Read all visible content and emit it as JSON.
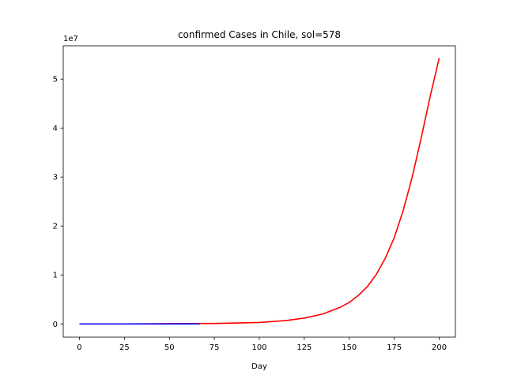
{
  "chart_data": {
    "type": "line",
    "title": "confirmed Cases in Chile, sol=578",
    "xlabel": "Day",
    "ylabel": "",
    "y_offset_label": "1e7",
    "xlim": [
      -9,
      209
    ],
    "ylim": [
      -2.7,
      56.8
    ],
    "x_ticks": [
      0,
      25,
      50,
      75,
      100,
      125,
      150,
      175,
      200
    ],
    "x_tick_labels": [
      "0",
      "25",
      "50",
      "75",
      "100",
      "125",
      "150",
      "175",
      "200"
    ],
    "y_ticks": [
      0,
      10,
      20,
      30,
      40,
      50
    ],
    "y_tick_labels": [
      "0",
      "1",
      "2",
      "3",
      "4",
      "5"
    ],
    "grid": false,
    "series": [
      {
        "color": "#ff0000",
        "x": [
          0,
          25,
          50,
          75,
          100,
          115,
          125,
          135,
          145,
          150,
          155,
          160,
          165,
          170,
          175,
          180,
          185,
          190,
          195,
          200
        ],
        "y": [
          0.0,
          0.0,
          0.05,
          0.1,
          0.3,
          0.7,
          1.2,
          2.0,
          3.4,
          4.4,
          5.8,
          7.6,
          10.1,
          13.4,
          17.6,
          23.2,
          30.0,
          38.0,
          46.5,
          54.3
        ]
      },
      {
        "color": "#0000ff",
        "x": [
          0,
          10,
          20,
          30,
          40,
          50,
          60,
          67
        ],
        "y": [
          0.0,
          0.0,
          0.0,
          0.0,
          0.0,
          0.0,
          0.01,
          0.02
        ]
      }
    ]
  }
}
